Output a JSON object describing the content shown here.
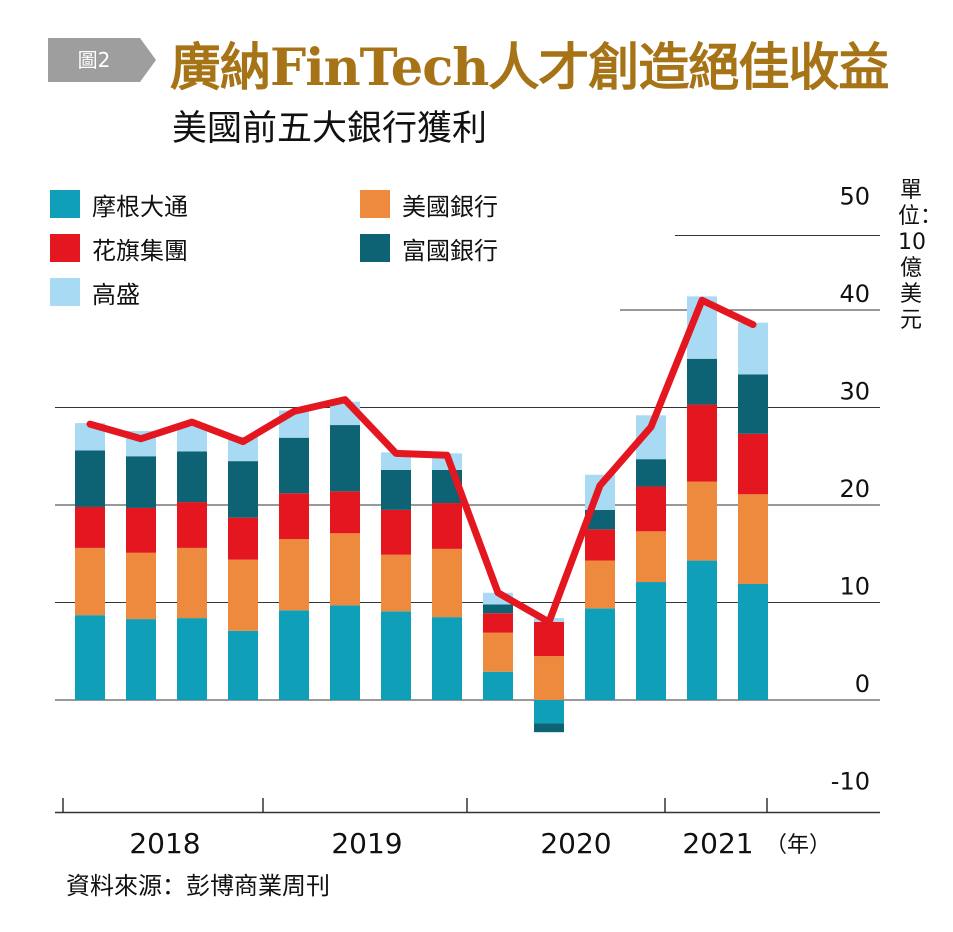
{
  "figure": {
    "badge": "圖2"
  },
  "title": "廣納FinTech人才創造絕佳收益",
  "subtitle": "美國前五大銀行獲利",
  "unit": "單位：10億美元",
  "source": "資料來源：彭博商業周刊",
  "colors": {
    "jpmorgan": "#0f9fb9",
    "bofa": "#ee8a3e",
    "citi": "#e4161f",
    "wells": "#0d6273",
    "goldman": "#a8dbf3",
    "line": "#e4161f",
    "title": "#a67416",
    "badge": "#9e9e9e"
  },
  "chart_data": {
    "type": "bar",
    "stacked": true,
    "x": [
      "2018Q1",
      "2018Q2",
      "2018Q3",
      "2018Q4",
      "2019Q1",
      "2019Q2",
      "2019Q3",
      "2019Q4",
      "2020Q1",
      "2020Q2",
      "2020Q3",
      "2020Q4",
      "2021Q1",
      "2021Q2"
    ],
    "year_labels": [
      "2018",
      "2019",
      "2020",
      "2021"
    ],
    "year_suffix": "（年）",
    "ylim": [
      -10,
      50
    ],
    "yticks": [
      -10,
      0,
      10,
      20,
      30,
      40,
      50
    ],
    "grid": true,
    "legend_position": "top-left",
    "series": [
      {
        "name": "摩根大通",
        "key": "jpmorgan",
        "values": [
          8.7,
          8.3,
          8.4,
          7.1,
          9.2,
          9.7,
          9.1,
          8.5,
          2.9,
          -2.4,
          9.4,
          12.1,
          14.3,
          11.9
        ]
      },
      {
        "name": "美國銀行",
        "key": "bofa",
        "values": [
          6.9,
          6.8,
          7.2,
          7.3,
          7.3,
          7.4,
          5.8,
          7.0,
          4.0,
          4.5,
          4.9,
          5.2,
          8.1,
          9.2
        ]
      },
      {
        "name": "花旗集團",
        "key": "citi",
        "values": [
          4.2,
          4.6,
          4.7,
          4.3,
          4.7,
          4.3,
          4.6,
          4.7,
          2.0,
          3.5,
          3.2,
          4.6,
          7.9,
          6.2
        ]
      },
      {
        "name": "富國銀行",
        "key": "wells",
        "values": [
          5.8,
          5.3,
          5.2,
          5.8,
          5.7,
          6.8,
          4.1,
          3.4,
          0.9,
          -0.9,
          2.0,
          2.8,
          4.7,
          6.1
        ]
      },
      {
        "name": "高盛",
        "key": "goldman",
        "values": [
          2.8,
          2.6,
          2.6,
          2.5,
          2.8,
          2.4,
          1.8,
          1.7,
          1.2,
          0.4,
          3.6,
          4.5,
          6.4,
          5.3
        ]
      }
    ],
    "line_series": {
      "values": [
        28.3,
        26.8,
        28.5,
        26.5,
        29.6,
        30.8,
        25.3,
        25.1,
        11.0,
        8.0,
        22.0,
        28.0,
        41.0,
        38.5
      ]
    }
  }
}
